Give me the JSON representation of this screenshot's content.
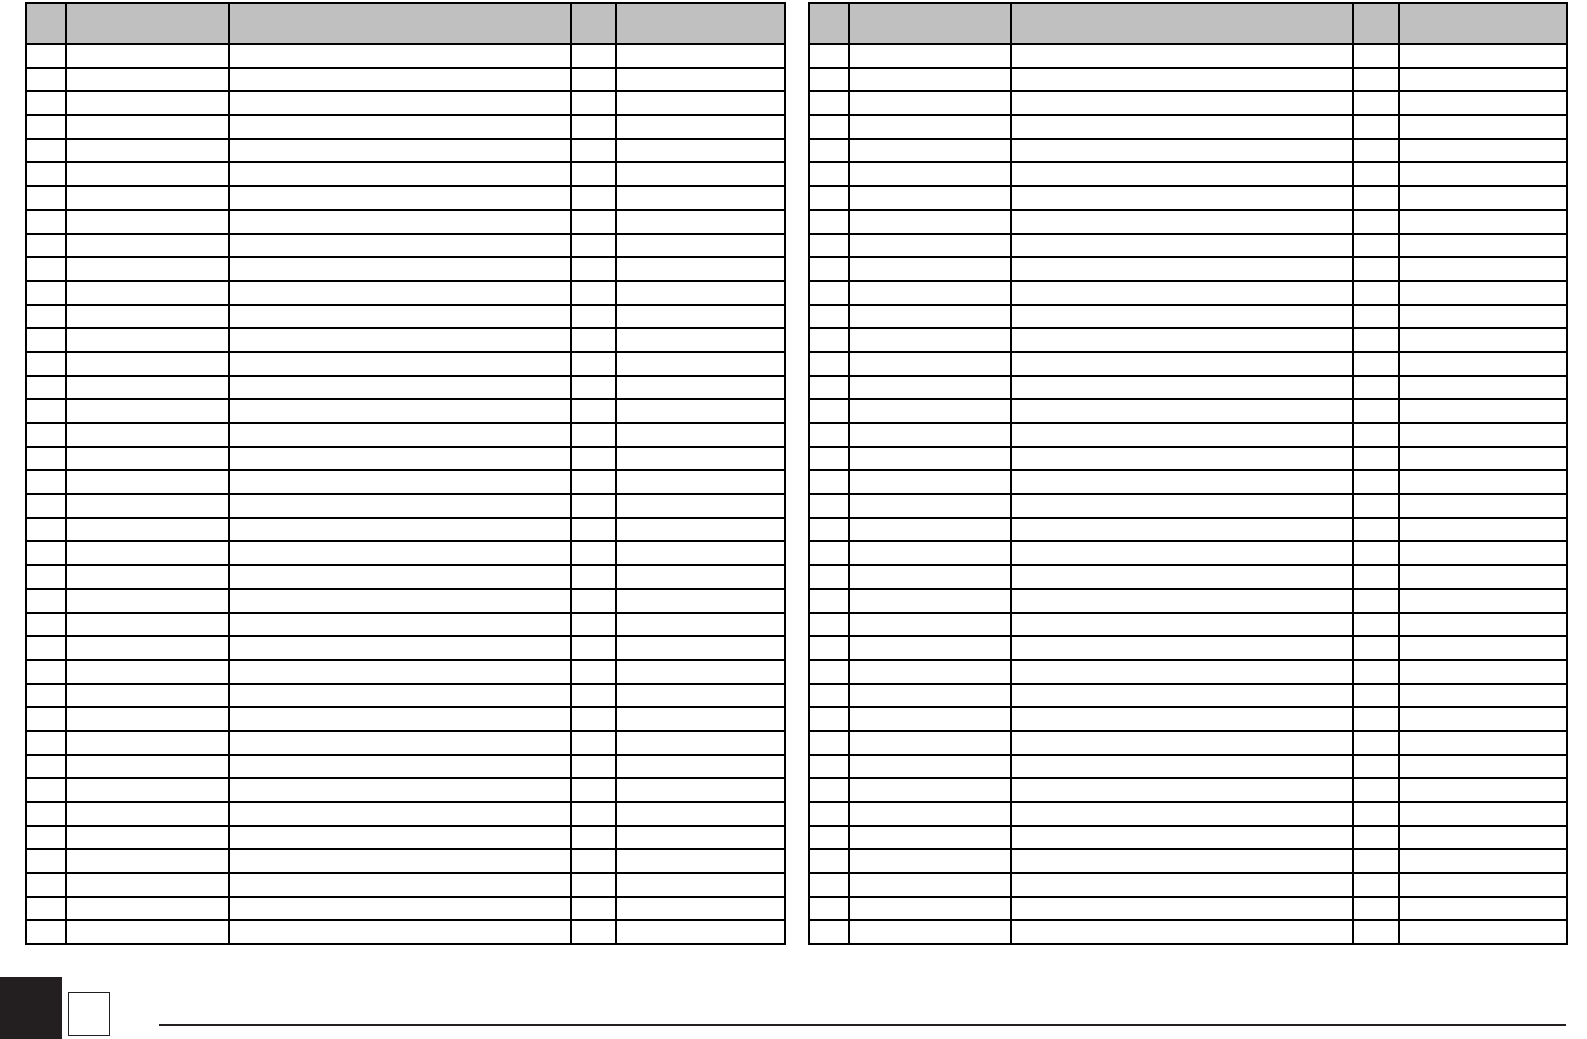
{
  "form": {
    "header_fill": "#c0c0c0",
    "line_color": "#000000",
    "tables": [
      {
        "id": "left",
        "column_count": 5,
        "row_count": 38
      },
      {
        "id": "right",
        "column_count": 5,
        "row_count": 38
      }
    ]
  },
  "footer": {
    "tab_color": "#231f20"
  }
}
